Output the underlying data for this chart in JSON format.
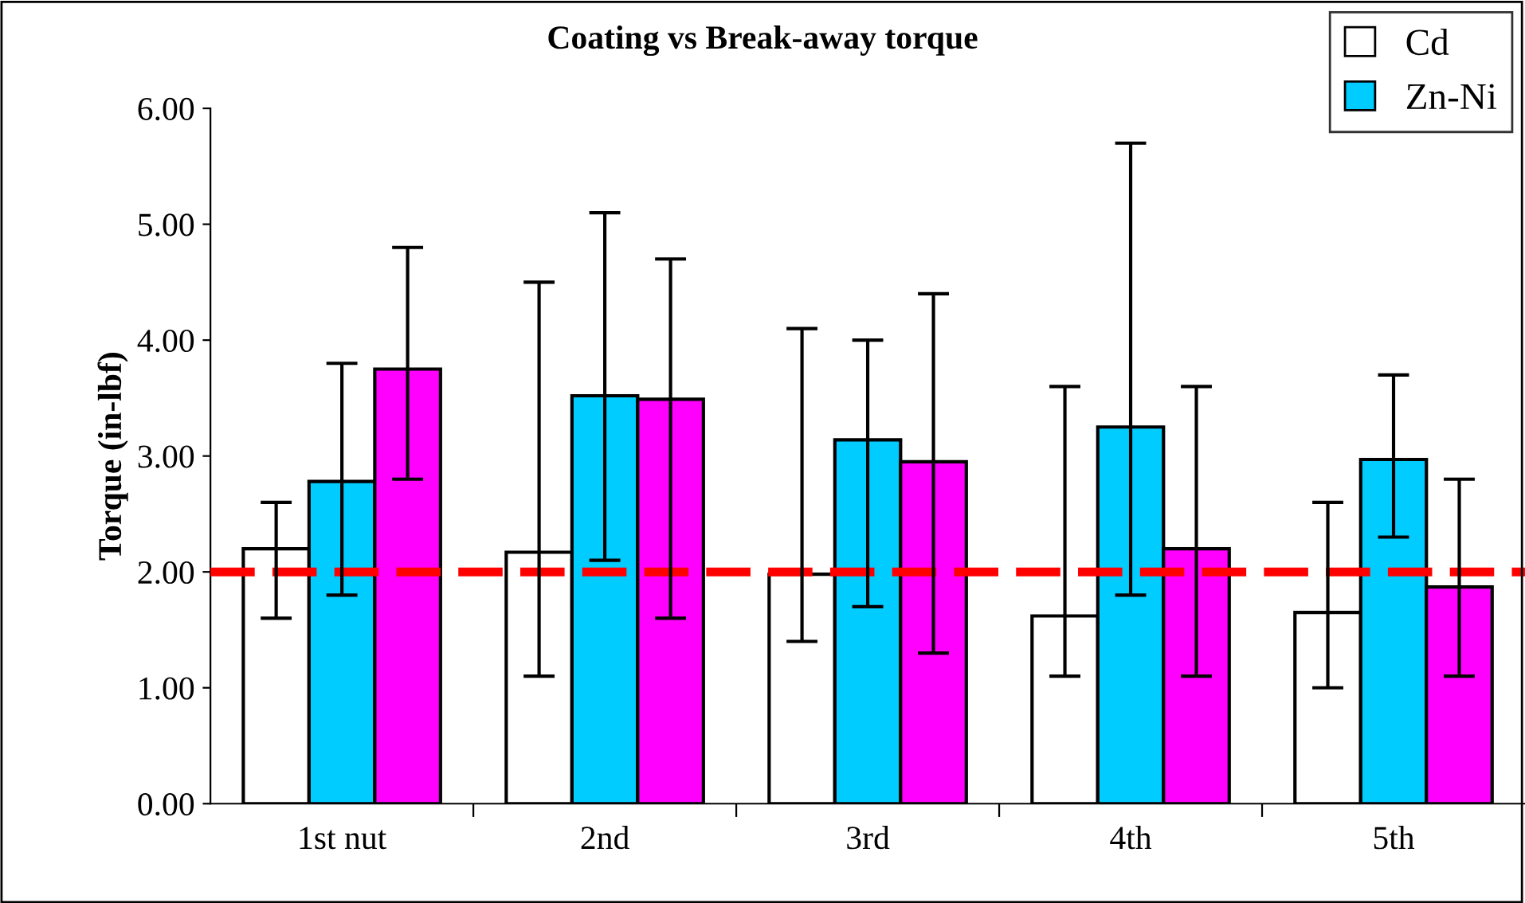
{
  "chart_data": {
    "type": "bar",
    "title": "Coating vs Break-away torque",
    "ylabel": "Torque (in-lbf)",
    "categories": [
      "1st nut",
      "2nd",
      "3rd",
      "4th",
      "5th"
    ],
    "series": [
      {
        "name": "Cd",
        "color": "#ffffff",
        "values": [
          2.2,
          2.17,
          1.98,
          1.62,
          1.65
        ],
        "errors": [
          [
            1.6,
            2.6
          ],
          [
            1.1,
            4.5
          ],
          [
            1.4,
            4.1
          ],
          [
            1.1,
            3.6
          ],
          [
            1.0,
            2.6
          ]
        ]
      },
      {
        "name": "Zn-Ni",
        "color": "#00ccff",
        "values": [
          2.78,
          3.52,
          3.14,
          3.25,
          2.97
        ],
        "errors": [
          [
            1.8,
            3.8
          ],
          [
            2.1,
            5.1
          ],
          [
            1.7,
            4.0
          ],
          [
            1.8,
            5.7
          ],
          [
            2.3,
            3.7
          ]
        ]
      },
      {
        "color": "#ff00ff",
        "values": [
          3.75,
          3.49,
          2.95,
          2.2,
          1.87
        ],
        "errors": [
          [
            2.8,
            4.8
          ],
          [
            1.6,
            4.7
          ],
          [
            1.3,
            4.4
          ],
          [
            1.1,
            3.6
          ],
          [
            1.1,
            2.8
          ]
        ]
      }
    ],
    "ylim": [
      0,
      6
    ],
    "yticks": [
      {
        "value": 0,
        "label": "0.00"
      },
      {
        "value": 1,
        "label": "1.00"
      },
      {
        "value": 2,
        "label": "2.00"
      },
      {
        "value": 3,
        "label": "3.00"
      },
      {
        "value": 4,
        "label": "4.00"
      },
      {
        "value": 5,
        "label": "5.00"
      },
      {
        "value": 6,
        "label": "6.00"
      }
    ],
    "ref_lines": [
      {
        "axis": "y",
        "value": 2,
        "color": "#ff0000",
        "line_style": "dashed"
      }
    ],
    "legend": "top right",
    "grid": false
  }
}
